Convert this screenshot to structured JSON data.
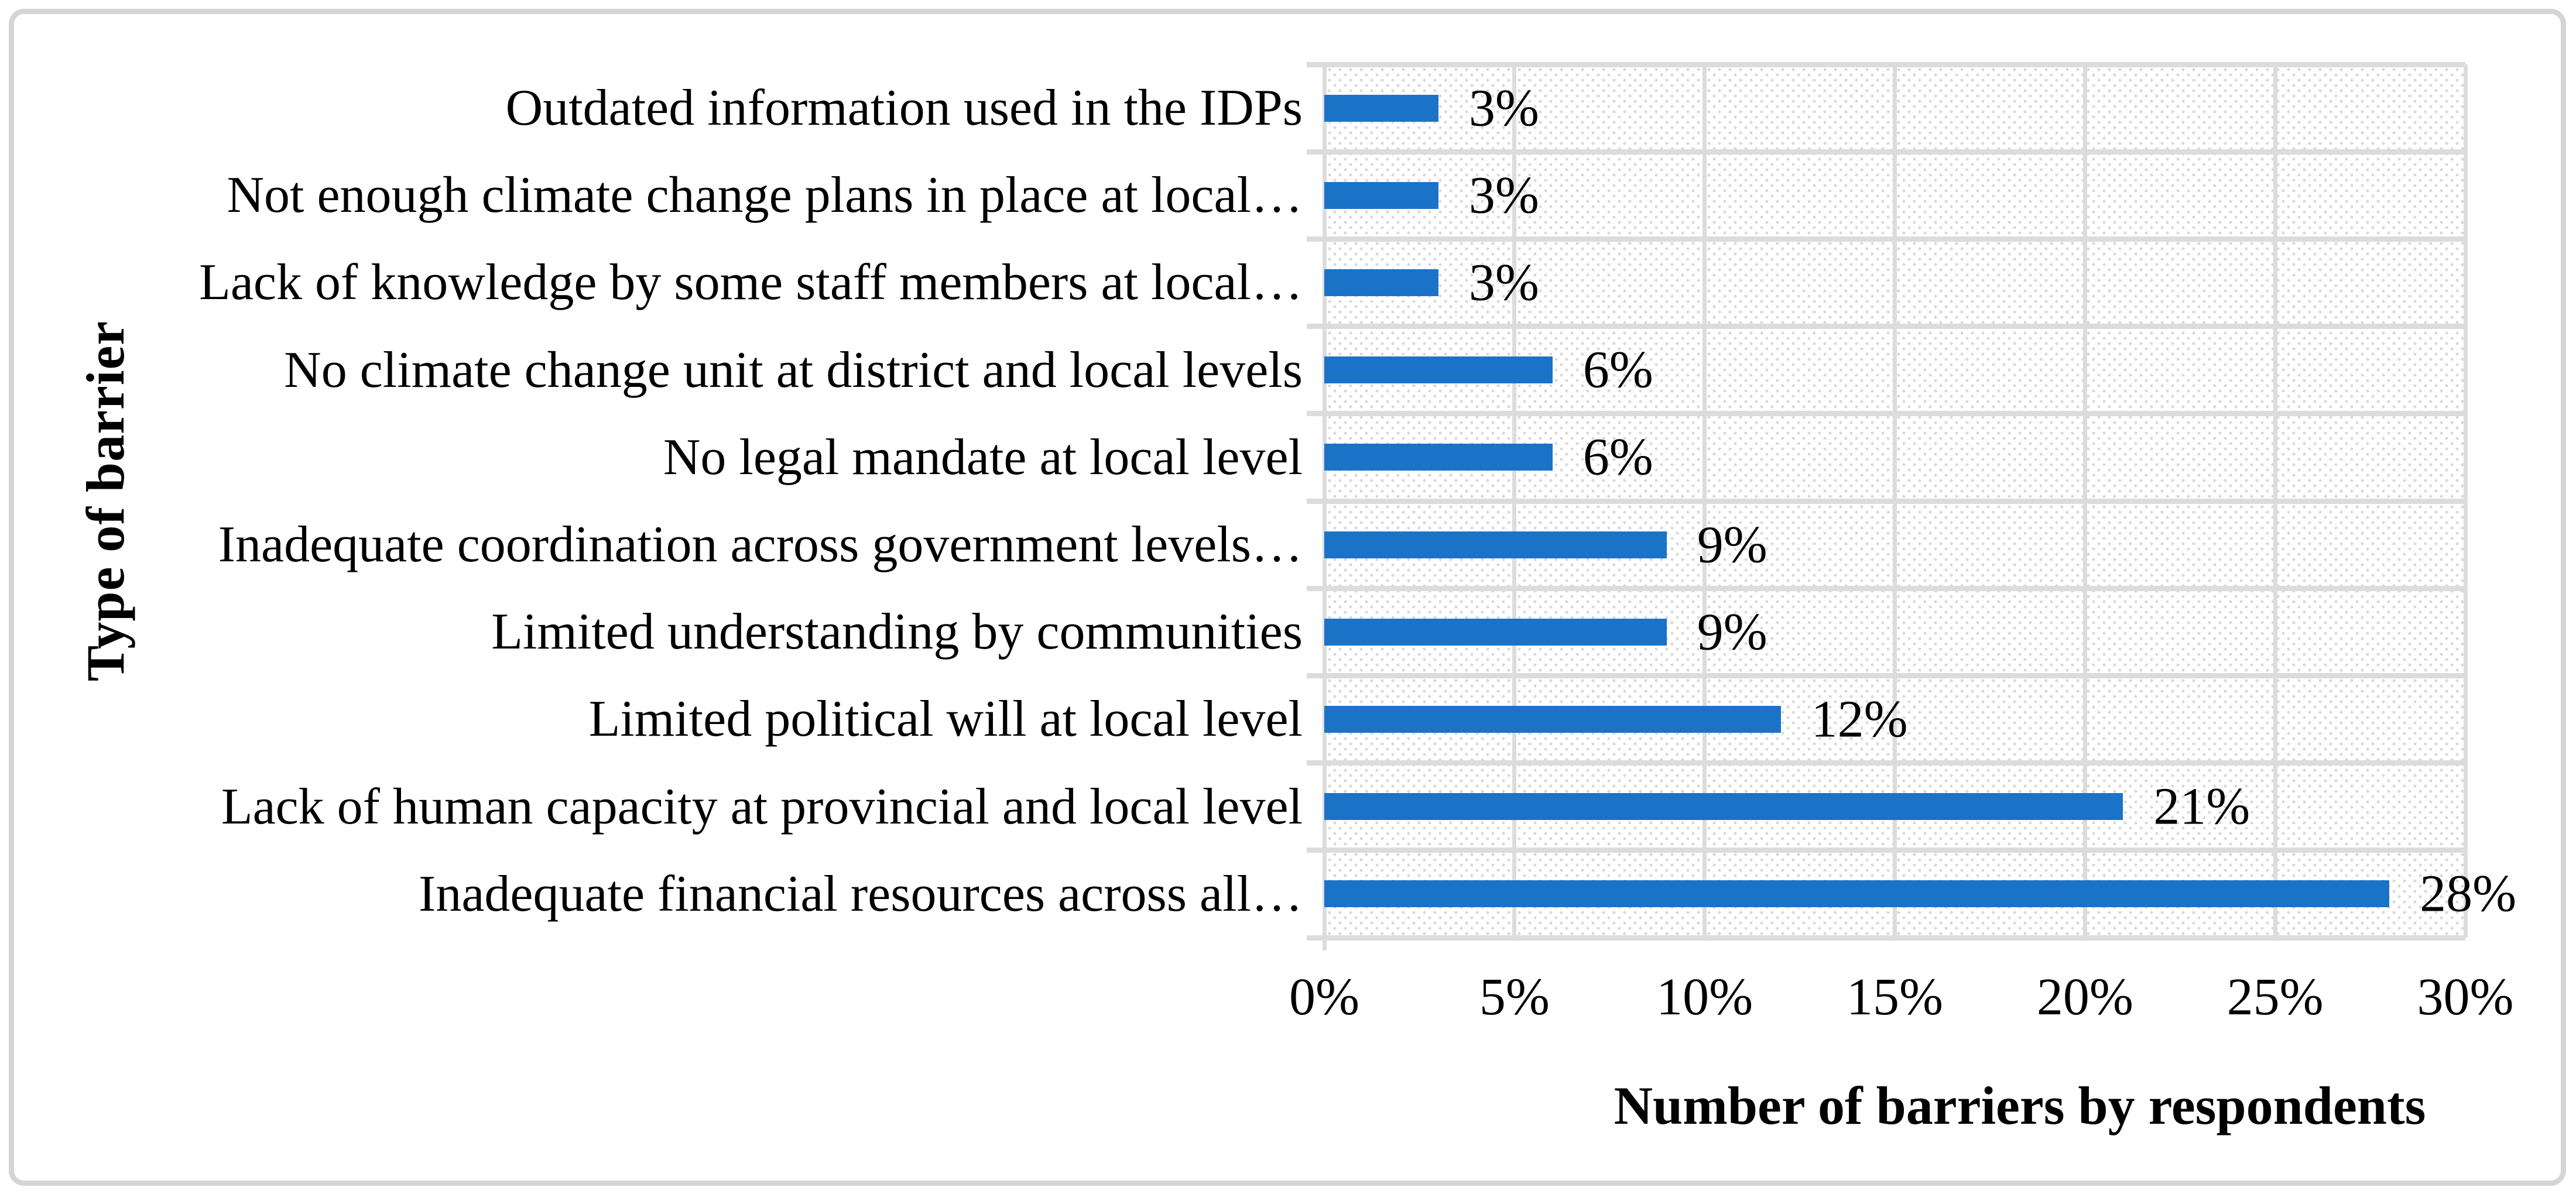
{
  "axes": {
    "y_title": "Type of barrier",
    "x_title": "Number of barriers by respondents"
  },
  "chart_data": {
    "type": "bar",
    "orientation": "horizontal",
    "title": "",
    "xlabel": "Number of barriers by respondents",
    "ylabel": "Type of barrier",
    "categories": [
      "Outdated information used in the IDPs",
      "Not enough climate change plans in place at local…",
      "Lack of knowledge by some staff members at local…",
      "No climate change unit at district and local levels",
      "No legal mandate at local level",
      "Inadequate coordination across government levels…",
      "Limited understanding by communities",
      "Limited political will at local level",
      "Lack of human capacity at provincial and local level",
      "Inadequate financial resources across all…"
    ],
    "values": [
      3,
      3,
      3,
      6,
      6,
      9,
      9,
      12,
      21,
      28
    ],
    "data_labels": [
      "3%",
      "3%",
      "3%",
      "6%",
      "6%",
      "9%",
      "9%",
      "12%",
      "21%",
      "28%"
    ],
    "x_ticks": [
      "0%",
      "5%",
      "10%",
      "15%",
      "20%",
      "25%",
      "30%"
    ],
    "xlim": [
      0,
      30
    ],
    "grid": "on",
    "legend": "none",
    "plot_background": "diagonal-dot-hatch",
    "value_label_position": "outside-end"
  },
  "colors": {
    "bar": "#1b73c8",
    "gridline": "#dcdcdc",
    "hatch_dot": "#d9d9d9",
    "frame_border": "#d5d5d5",
    "text": "#000000"
  }
}
